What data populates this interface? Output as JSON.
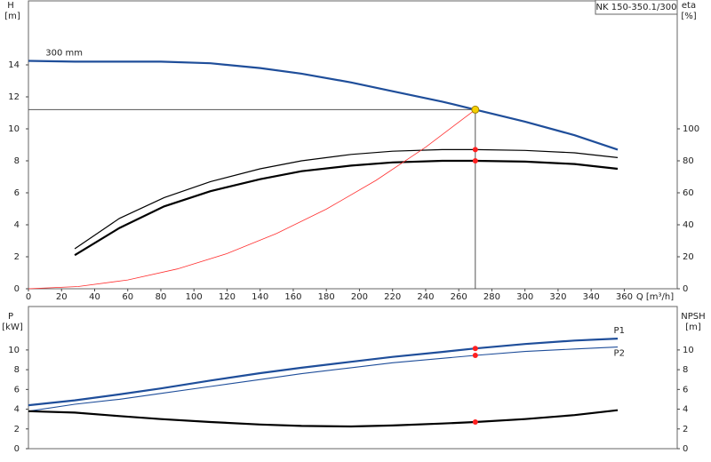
{
  "chart_data": [
    {
      "type": "line",
      "title": "NK 150-350.1/300",
      "ylabel": [
        "H",
        "[m]"
      ],
      "y2label": [
        "eta",
        "[%]"
      ],
      "xlabel": "Q [m³/h]",
      "xlim": [
        0,
        392
      ],
      "xticks": [
        0,
        20,
        40,
        60,
        80,
        100,
        120,
        140,
        160,
        180,
        200,
        220,
        240,
        260,
        280,
        300,
        320,
        340,
        360
      ],
      "ylim": [
        0,
        18
      ],
      "yticks": [
        0,
        2,
        4,
        6,
        8,
        10,
        12,
        14
      ],
      "y2lim": [
        0,
        180
      ],
      "y2ticks": [
        0,
        20,
        40,
        60,
        80,
        100
      ],
      "series": [
        {
          "name": "300 mm",
          "color": "#1f4e9a",
          "width": 2.2,
          "axis": "y",
          "x": [
            0,
            28,
            55,
            80,
            110,
            140,
            165,
            195,
            220,
            250,
            270,
            300,
            330,
            356
          ],
          "values": [
            14.25,
            14.2,
            14.2,
            14.2,
            14.1,
            13.8,
            13.45,
            12.9,
            12.35,
            11.7,
            11.2,
            10.45,
            9.6,
            8.7
          ]
        },
        {
          "color": "#000000",
          "width": 1.2,
          "axis": "y2",
          "x": [
            28,
            55,
            82,
            110,
            140,
            165,
            195,
            220,
            250,
            270,
            300,
            330,
            356
          ],
          "values": [
            25,
            44,
            57,
            67,
            75,
            80,
            84,
            86,
            87,
            87,
            86.5,
            85,
            82
          ]
        },
        {
          "color": "#000000",
          "width": 2.2,
          "axis": "y2",
          "x": [
            28,
            55,
            82,
            110,
            140,
            165,
            195,
            220,
            250,
            270,
            300,
            330,
            356
          ],
          "values": [
            21,
            38,
            51.5,
            61,
            68.5,
            73.5,
            77,
            79,
            80,
            80,
            79.5,
            78,
            75
          ]
        },
        {
          "color": "#ff3030",
          "width": 0.8,
          "axis": "y",
          "x": [
            0,
            30,
            60,
            90,
            120,
            150,
            180,
            210,
            240,
            270
          ],
          "values": [
            0,
            0.14,
            0.55,
            1.24,
            2.2,
            3.46,
            4.98,
            6.78,
            8.85,
            11.2
          ]
        }
      ],
      "markers": [
        {
          "x": 270,
          "y": 11.2,
          "axis": "y",
          "color": "#f5d000",
          "crosshair": true
        },
        {
          "x": 270,
          "y": 87,
          "axis": "y2",
          "color": "#ff2020"
        },
        {
          "x": 270,
          "y": 80,
          "axis": "y2",
          "color": "#ff2020"
        }
      ]
    },
    {
      "type": "line",
      "ylabel": [
        "P",
        "[kW]"
      ],
      "y2label": [
        "NPSH",
        "[m]"
      ],
      "xlim": [
        0,
        392
      ],
      "ylim": [
        0,
        14.4
      ],
      "yticks": [
        0,
        2,
        4,
        6,
        8,
        10
      ],
      "y2lim": [
        0,
        14.4
      ],
      "y2ticks": [
        0,
        2,
        4,
        6,
        8,
        10
      ],
      "series": [
        {
          "name": "P1",
          "color": "#1f4e9a",
          "width": 2.2,
          "axis": "y",
          "x": [
            0,
            28,
            55,
            80,
            110,
            140,
            165,
            195,
            220,
            250,
            270,
            300,
            330,
            356
          ],
          "values": [
            4.4,
            4.9,
            5.5,
            6.1,
            6.9,
            7.65,
            8.2,
            8.8,
            9.3,
            9.8,
            10.15,
            10.6,
            10.95,
            11.15
          ]
        },
        {
          "name": "P2",
          "color": "#1f4e9a",
          "width": 1.1,
          "axis": "y",
          "x": [
            0,
            28,
            55,
            80,
            110,
            140,
            165,
            195,
            220,
            250,
            270,
            300,
            330,
            356
          ],
          "values": [
            3.8,
            4.5,
            5.0,
            5.6,
            6.3,
            7.0,
            7.6,
            8.2,
            8.7,
            9.15,
            9.45,
            9.85,
            10.1,
            10.3
          ]
        },
        {
          "color": "#000000",
          "width": 2.2,
          "axis": "y2",
          "x": [
            0,
            28,
            55,
            80,
            110,
            140,
            165,
            195,
            220,
            250,
            270,
            300,
            330,
            356
          ],
          "values": [
            3.8,
            3.65,
            3.3,
            3.0,
            2.7,
            2.45,
            2.3,
            2.25,
            2.35,
            2.55,
            2.7,
            3.0,
            3.4,
            3.9
          ]
        }
      ],
      "markers": [
        {
          "x": 270,
          "y": 10.15,
          "axis": "y",
          "color": "#ff2020"
        },
        {
          "x": 270,
          "y": 9.45,
          "axis": "y",
          "color": "#ff2020"
        },
        {
          "x": 270,
          "y": 2.7,
          "axis": "y2",
          "color": "#ff2020"
        }
      ]
    }
  ]
}
